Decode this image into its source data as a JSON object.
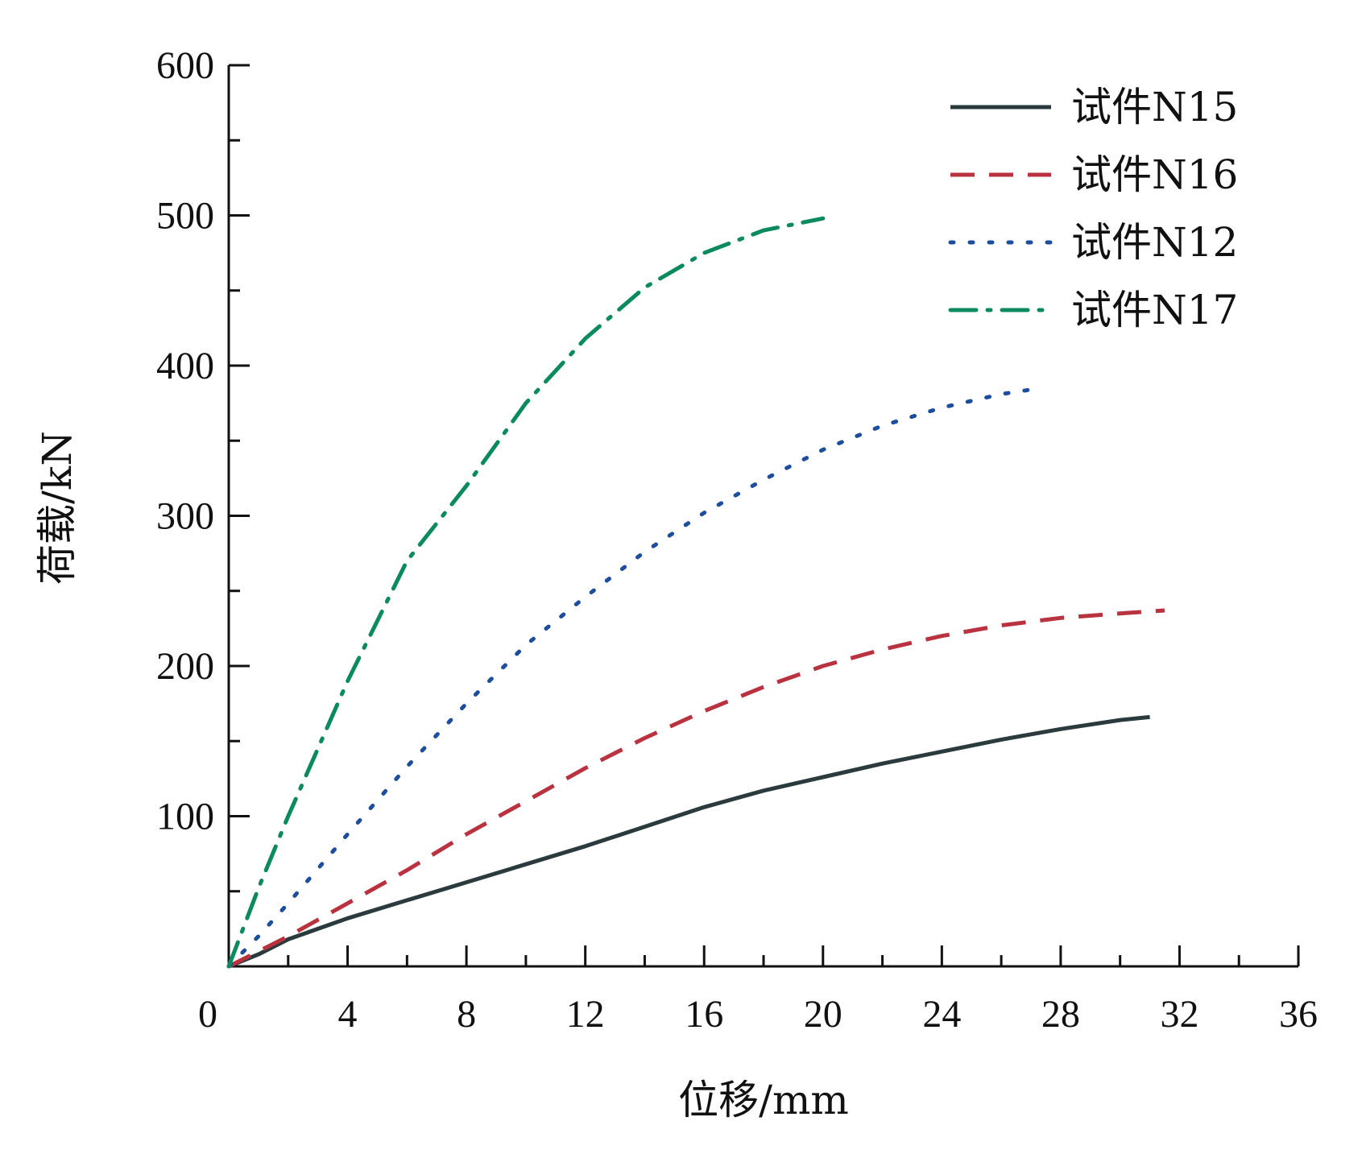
{
  "chart_data": {
    "type": "line",
    "title": "",
    "xlabel": "位移/mm",
    "ylabel": "荷载/kN",
    "xlim": [
      0,
      36
    ],
    "ylim": [
      0,
      600
    ],
    "x_ticks": [
      0,
      4,
      8,
      12,
      16,
      20,
      24,
      28,
      32,
      36
    ],
    "x_tick_labels": [
      "0",
      "4",
      "8",
      "12",
      "16",
      "20",
      "24",
      "28",
      "32",
      "36"
    ],
    "y_ticks": [
      100,
      200,
      300,
      400,
      500,
      600
    ],
    "y_tick_labels": [
      "100",
      "200",
      "300",
      "400",
      "500",
      "600"
    ],
    "grid": false,
    "legend_position": "top-right",
    "series": [
      {
        "name": "试件N15",
        "color": "#2b3a3c",
        "style": "solid",
        "x": [
          0,
          1,
          2,
          4,
          6,
          8,
          10,
          12,
          14,
          16,
          18,
          20,
          22,
          24,
          26,
          28,
          30,
          31
        ],
        "y": [
          0,
          8,
          18,
          32,
          44,
          56,
          68,
          80,
          93,
          106,
          117,
          126,
          135,
          143,
          151,
          158,
          164,
          166
        ]
      },
      {
        "name": "试件N16",
        "color": "#b8333f",
        "style": "dashed",
        "x": [
          0,
          2,
          4,
          6,
          8,
          10,
          12,
          14,
          16,
          18,
          20,
          22,
          24,
          26,
          28,
          30,
          31.5
        ],
        "y": [
          0,
          20,
          42,
          64,
          88,
          110,
          132,
          152,
          170,
          186,
          200,
          211,
          220,
          227,
          232,
          235,
          237
        ]
      },
      {
        "name": "试件N12",
        "color": "#1d4e9e",
        "style": "dotted",
        "x": [
          0,
          1,
          2,
          4,
          6,
          8,
          10,
          12,
          14,
          16,
          18,
          20,
          22,
          24,
          26,
          27
        ],
        "y": [
          0,
          20,
          42,
          88,
          133,
          175,
          214,
          246,
          276,
          302,
          324,
          344,
          360,
          372,
          381,
          384
        ]
      },
      {
        "name": "试件N17",
        "color": "#0b8a5e",
        "style": "dashdot",
        "x": [
          0,
          1,
          2,
          4,
          6,
          8,
          10,
          12,
          14,
          16,
          18,
          20
        ],
        "y": [
          0,
          52,
          100,
          190,
          270,
          320,
          375,
          418,
          452,
          475,
          490,
          498
        ]
      }
    ]
  }
}
